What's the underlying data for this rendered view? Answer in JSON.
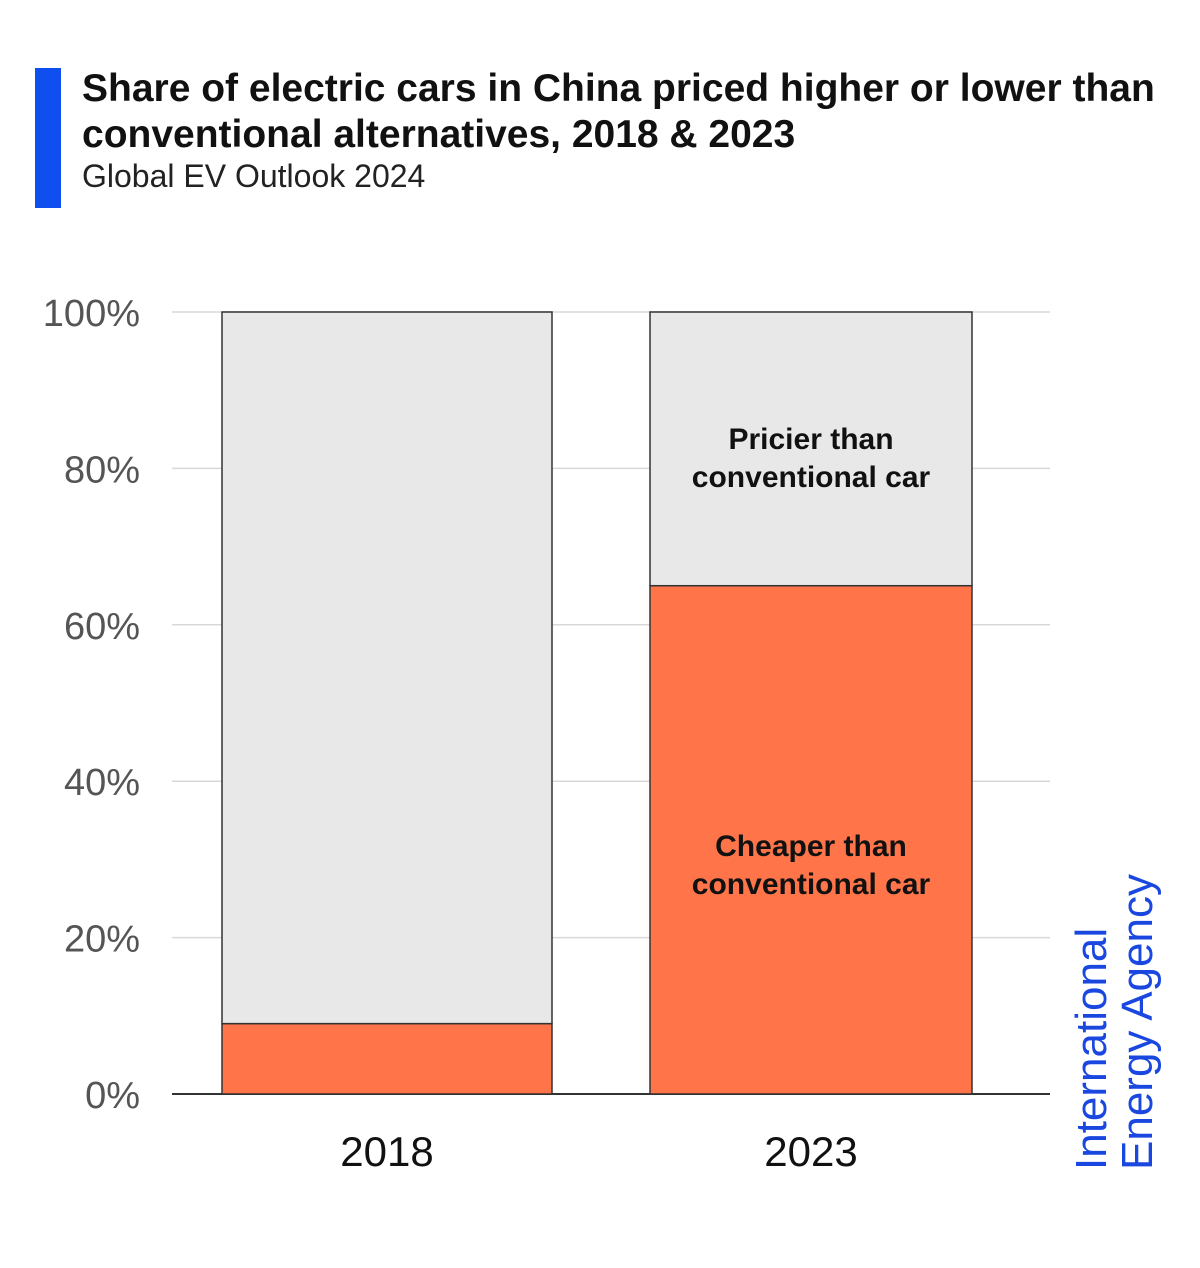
{
  "header": {
    "title": "Share of electric cars in China priced higher or lower than conventional alternatives, 2018 & 2023",
    "subtitle": "Global EV Outlook 2024",
    "accent_color": "#0f4ff0"
  },
  "logo": {
    "line1": "International",
    "line2": "Energy Agency",
    "color": "#1a47e0"
  },
  "chart_data": {
    "type": "bar",
    "stacked": true,
    "categories": [
      "2018",
      "2023"
    ],
    "series": [
      {
        "name": "Cheaper than conventional car",
        "values": [
          9,
          65
        ],
        "color": "#ff7549"
      },
      {
        "name": "Pricier than conventional car",
        "values": [
          91,
          35
        ],
        "color": "#e8e8e8"
      }
    ],
    "labels": {
      "cheaper_line1": "Cheaper than",
      "cheaper_line2": "conventional car",
      "pricier_line1": "Pricier than",
      "pricier_line2": "conventional car"
    },
    "yticks": [
      "0%",
      "20%",
      "40%",
      "60%",
      "80%",
      "100%"
    ],
    "ylim": [
      0,
      100
    ],
    "grid": true,
    "xlabel": "",
    "ylabel": ""
  }
}
